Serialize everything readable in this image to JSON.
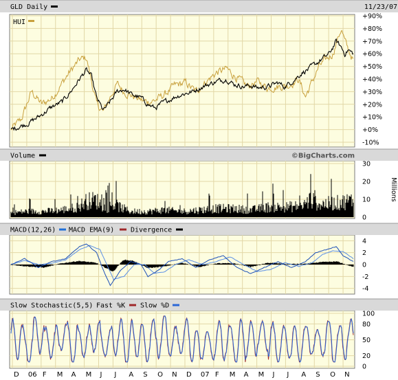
{
  "header": {
    "title": "GLD Daily",
    "date": "11/23/07",
    "watermark": "©BigCharts.com"
  },
  "colors": {
    "panel_bg": "#fdfde0",
    "header_bg": "#d9d9d9",
    "grid": "#e2d7a6",
    "gld": "#000000",
    "hui": "#c8a03c",
    "macd": "#1e6ed8",
    "macd_ema": "#1e6ed8",
    "divergence": "#000000",
    "fast_k": "#a0282a",
    "slow_d": "#2a66d6"
  },
  "chart_data": [
    {
      "type": "line",
      "panel": "price",
      "title": "GLD Daily",
      "legend": [
        "HUI"
      ],
      "y_unit": "% change",
      "yticks": [
        "+90%",
        "+80%",
        "+70%",
        "+60%",
        "+50%",
        "+40%",
        "+30%",
        "+20%",
        "+10%",
        "+0%",
        "-10%"
      ],
      "ylim": [
        -10,
        90
      ],
      "x_labels": [
        "D",
        "06",
        "F",
        "M",
        "A",
        "M",
        "J",
        "J",
        "A",
        "S",
        "O",
        "N",
        "D",
        "07",
        "F",
        "M",
        "A",
        "M",
        "J",
        "J",
        "A",
        "S",
        "O",
        "N"
      ],
      "series": [
        {
          "name": "GLD Daily",
          "x": [
            0,
            0.02,
            0.05,
            0.08,
            0.12,
            0.15,
            0.18,
            0.2,
            0.22,
            0.235,
            0.25,
            0.27,
            0.29,
            0.31,
            0.33,
            0.35,
            0.38,
            0.4,
            0.42,
            0.45,
            0.48,
            0.5,
            0.53,
            0.56,
            0.6,
            0.63,
            0.65,
            0.68,
            0.7,
            0.72,
            0.75,
            0.78,
            0.8,
            0.83,
            0.85,
            0.87,
            0.89,
            0.91,
            0.93,
            0.95,
            0.965,
            0.975,
            0.985,
            1.0
          ],
          "values": [
            0,
            2,
            5,
            10,
            18,
            22,
            32,
            40,
            47,
            42,
            25,
            15,
            22,
            30,
            32,
            28,
            25,
            20,
            17,
            22,
            26,
            28,
            30,
            34,
            38,
            40,
            36,
            34,
            35,
            33,
            34,
            37,
            34,
            40,
            45,
            48,
            52,
            56,
            60,
            70,
            65,
            60,
            63,
            60
          ]
        },
        {
          "name": "HUI",
          "x": [
            0,
            0.03,
            0.06,
            0.09,
            0.12,
            0.14,
            0.17,
            0.2,
            0.22,
            0.23,
            0.25,
            0.27,
            0.29,
            0.31,
            0.33,
            0.36,
            0.39,
            0.42,
            0.45,
            0.48,
            0.51,
            0.54,
            0.57,
            0.6,
            0.63,
            0.66,
            0.69,
            0.72,
            0.75,
            0.78,
            0.81,
            0.84,
            0.86,
            0.88,
            0.9,
            0.92,
            0.94,
            0.955,
            0.965,
            0.975,
            0.985,
            1.0
          ],
          "values": [
            0,
            8,
            30,
            20,
            25,
            33,
            45,
            55,
            57,
            45,
            20,
            14,
            26,
            36,
            30,
            26,
            22,
            23,
            28,
            35,
            37,
            30,
            38,
            45,
            48,
            41,
            34,
            38,
            33,
            34,
            35,
            40,
            26,
            38,
            50,
            55,
            60,
            72,
            80,
            70,
            63,
            55
          ]
        }
      ]
    },
    {
      "type": "bar",
      "panel": "volume",
      "title": "Volume",
      "y_unit": "Millions",
      "yticks": [
        "30",
        "20",
        "10",
        "0"
      ],
      "ylim": [
        0,
        30
      ],
      "profile_x": [
        0,
        0.05,
        0.1,
        0.15,
        0.2,
        0.22,
        0.25,
        0.28,
        0.3,
        0.35,
        0.4,
        0.45,
        0.5,
        0.55,
        0.6,
        0.65,
        0.7,
        0.75,
        0.8,
        0.85,
        0.87,
        0.9,
        0.95,
        1.0
      ],
      "profile_values": [
        3,
        4,
        4,
        5,
        7,
        11,
        12,
        6,
        9,
        4,
        4,
        5,
        4,
        5,
        6,
        6,
        5,
        7,
        7,
        8,
        12,
        9,
        10,
        12
      ]
    },
    {
      "type": "line",
      "panel": "macd",
      "title": "MACD(12,26)",
      "legend": [
        "MACD EMA(9)",
        "Divergence"
      ],
      "yticks": [
        "4",
        "2",
        "0",
        "-2",
        "-4"
      ],
      "ylim": [
        -4.5,
        4.5
      ],
      "series": [
        {
          "name": "MACD(12,26)",
          "x": [
            0,
            0.04,
            0.08,
            0.12,
            0.16,
            0.2,
            0.22,
            0.25,
            0.27,
            0.29,
            0.32,
            0.35,
            0.38,
            0.4,
            0.43,
            0.46,
            0.5,
            0.54,
            0.58,
            0.62,
            0.66,
            0.7,
            0.74,
            0.78,
            0.82,
            0.86,
            0.89,
            0.92,
            0.95,
            0.97,
            1.0
          ],
          "values": [
            0,
            1,
            -0.5,
            0.5,
            1,
            3,
            3.5,
            2,
            -1,
            -3.5,
            -1,
            0.5,
            0,
            -2,
            -1,
            0.5,
            1,
            -0.5,
            0.8,
            1.5,
            -0.5,
            -1.5,
            -0.5,
            0.5,
            -0.5,
            0.5,
            2,
            2.5,
            3,
            1.5,
            0.5
          ]
        },
        {
          "name": "MACD EMA(9)",
          "x": [
            0,
            0.04,
            0.08,
            0.12,
            0.16,
            0.2,
            0.23,
            0.26,
            0.28,
            0.3,
            0.33,
            0.36,
            0.39,
            0.42,
            0.45,
            0.48,
            0.52,
            0.56,
            0.6,
            0.64,
            0.68,
            0.72,
            0.76,
            0.8,
            0.84,
            0.88,
            0.91,
            0.94,
            0.97,
            1.0
          ],
          "values": [
            0,
            0.7,
            0,
            0.2,
            0.8,
            2.5,
            3.2,
            2.5,
            0,
            -2.5,
            -2,
            0,
            0,
            -1.5,
            -1.2,
            0,
            0.8,
            0,
            0.5,
            1.3,
            0,
            -1.2,
            -0.8,
            0.3,
            -0.3,
            0.3,
            1.7,
            2.3,
            2.2,
            1
          ]
        },
        {
          "name": "Divergence",
          "x": [
            0,
            0.05,
            0.1,
            0.15,
            0.2,
            0.25,
            0.28,
            0.3,
            0.33,
            0.36,
            0.4,
            0.45,
            0.5,
            0.55,
            0.6,
            0.65,
            0.7,
            0.75,
            0.8,
            0.85,
            0.9,
            0.95,
            1.0
          ],
          "values": [
            0,
            -0.3,
            -0.5,
            0.2,
            0.6,
            0.3,
            -0.6,
            -1.2,
            0.8,
            0.6,
            -0.6,
            -0.3,
            0.3,
            -0.4,
            0.2,
            0.2,
            -0.4,
            0.3,
            0.1,
            0.1,
            0.4,
            0.5,
            -0.5
          ]
        }
      ]
    },
    {
      "type": "line",
      "panel": "stochastic",
      "title": "Slow Stochastic(5,5)",
      "legend": [
        "Fast %K",
        "Slow %D"
      ],
      "yticks": [
        "100",
        "80",
        "50",
        "20",
        "0"
      ],
      "ylim": [
        0,
        100
      ],
      "oscillation_cycles": 31,
      "range": [
        8,
        95
      ]
    }
  ]
}
